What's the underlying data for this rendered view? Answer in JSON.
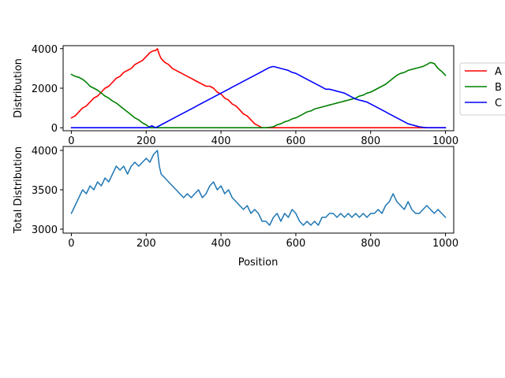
{
  "chart_data": [
    {
      "type": "line",
      "xlabel": "",
      "ylabel": "Distribution",
      "xlim": [
        -22,
        1022
      ],
      "ylim": [
        -150,
        4150
      ],
      "xticks": [
        0,
        200,
        400,
        600,
        800,
        1000
      ],
      "yticks": [
        0,
        2000,
        4000
      ],
      "legend_position": "outside-right",
      "series": [
        {
          "name": "A",
          "color": "#ff0000",
          "x": [
            0,
            10,
            20,
            30,
            40,
            50,
            60,
            70,
            80,
            90,
            100,
            110,
            120,
            130,
            140,
            150,
            160,
            170,
            180,
            190,
            200,
            210,
            220,
            225,
            230,
            235,
            240,
            250,
            260,
            270,
            280,
            290,
            300,
            310,
            320,
            330,
            340,
            350,
            360,
            370,
            380,
            390,
            400,
            410,
            420,
            430,
            440,
            450,
            460,
            470,
            480,
            490,
            500,
            510,
            520,
            530,
            1000
          ],
          "y": [
            500,
            600,
            800,
            1000,
            1100,
            1300,
            1500,
            1600,
            1800,
            2000,
            2100,
            2300,
            2500,
            2600,
            2800,
            2900,
            3000,
            3200,
            3300,
            3400,
            3600,
            3800,
            3900,
            3900,
            4000,
            3700,
            3500,
            3300,
            3200,
            3000,
            2900,
            2800,
            2700,
            2600,
            2500,
            2400,
            2300,
            2200,
            2100,
            2100,
            2000,
            1800,
            1700,
            1500,
            1400,
            1200,
            1100,
            900,
            700,
            600,
            400,
            200,
            100,
            0,
            0,
            0,
            0
          ]
        },
        {
          "name": "B",
          "color": "#008000",
          "x": [
            0,
            10,
            20,
            30,
            40,
            50,
            60,
            70,
            80,
            90,
            100,
            110,
            120,
            130,
            140,
            150,
            160,
            170,
            180,
            190,
            200,
            210,
            520,
            530,
            540,
            550,
            560,
            570,
            580,
            590,
            600,
            610,
            620,
            630,
            640,
            650,
            660,
            670,
            680,
            690,
            700,
            710,
            720,
            730,
            740,
            750,
            760,
            770,
            780,
            790,
            800,
            810,
            820,
            830,
            840,
            850,
            860,
            870,
            880,
            890,
            900,
            910,
            920,
            930,
            940,
            950,
            960,
            970,
            980,
            990,
            1000
          ],
          "y": [
            2700,
            2600,
            2550,
            2450,
            2300,
            2100,
            2000,
            1900,
            1750,
            1600,
            1500,
            1350,
            1250,
            1100,
            950,
            800,
            650,
            500,
            400,
            250,
            150,
            0,
            0,
            20,
            50,
            150,
            200,
            300,
            350,
            450,
            500,
            600,
            700,
            800,
            850,
            950,
            1000,
            1050,
            1100,
            1150,
            1200,
            1250,
            1300,
            1350,
            1400,
            1450,
            1500,
            1600,
            1650,
            1750,
            1800,
            1900,
            2000,
            2100,
            2200,
            2350,
            2500,
            2650,
            2750,
            2800,
            2900,
            2950,
            3000,
            3050,
            3100,
            3200,
            3300,
            3250,
            3000,
            2850,
            2650
          ]
        },
        {
          "name": "C",
          "color": "#0000ff",
          "x": [
            0,
            205,
            215,
            225,
            230,
            240,
            250,
            260,
            270,
            280,
            290,
            300,
            310,
            320,
            330,
            340,
            350,
            360,
            370,
            380,
            390,
            400,
            410,
            420,
            430,
            440,
            450,
            460,
            470,
            480,
            490,
            500,
            510,
            520,
            530,
            540,
            550,
            560,
            570,
            580,
            590,
            600,
            610,
            620,
            630,
            640,
            650,
            660,
            670,
            680,
            690,
            700,
            710,
            720,
            730,
            740,
            750,
            760,
            770,
            780,
            790,
            800,
            810,
            820,
            830,
            840,
            850,
            860,
            870,
            880,
            890,
            900,
            910,
            920,
            930,
            940,
            950,
            1000
          ],
          "y": [
            0,
            0,
            100,
            0,
            50,
            150,
            250,
            350,
            450,
            550,
            650,
            750,
            850,
            950,
            1050,
            1150,
            1250,
            1350,
            1450,
            1550,
            1650,
            1750,
            1850,
            1950,
            2050,
            2150,
            2250,
            2350,
            2450,
            2550,
            2650,
            2750,
            2850,
            2950,
            3050,
            3100,
            3050,
            3000,
            2950,
            2900,
            2800,
            2750,
            2650,
            2550,
            2450,
            2350,
            2250,
            2150,
            2050,
            1950,
            1950,
            1900,
            1850,
            1800,
            1750,
            1650,
            1550,
            1450,
            1400,
            1350,
            1300,
            1200,
            1100,
            1000,
            900,
            800,
            700,
            600,
            500,
            400,
            300,
            200,
            150,
            100,
            50,
            20,
            0,
            0
          ]
        }
      ]
    },
    {
      "type": "line",
      "xlabel": "Position",
      "ylabel": "Total Distribution",
      "xlim": [
        -22,
        1022
      ],
      "ylim": [
        2950,
        4050
      ],
      "xticks": [
        0,
        200,
        400,
        600,
        800,
        1000
      ],
      "yticks": [
        3000,
        3500,
        4000
      ],
      "series": [
        {
          "color": "#1f77b4",
          "x": [
            0,
            10,
            20,
            30,
            40,
            50,
            60,
            70,
            80,
            90,
            100,
            110,
            120,
            130,
            140,
            150,
            160,
            170,
            180,
            190,
            200,
            210,
            220,
            230,
            235,
            240,
            250,
            260,
            270,
            280,
            290,
            300,
            310,
            320,
            330,
            340,
            350,
            360,
            370,
            380,
            390,
            400,
            410,
            420,
            430,
            440,
            450,
            460,
            470,
            480,
            490,
            500,
            510,
            520,
            530,
            540,
            550,
            560,
            570,
            580,
            590,
            600,
            610,
            620,
            630,
            640,
            650,
            660,
            670,
            680,
            690,
            700,
            710,
            720,
            730,
            740,
            750,
            760,
            770,
            780,
            790,
            800,
            810,
            820,
            830,
            840,
            850,
            860,
            870,
            880,
            890,
            900,
            910,
            920,
            930,
            940,
            950,
            960,
            970,
            980,
            990,
            1000
          ],
          "y": [
            3200,
            3300,
            3400,
            3500,
            3450,
            3550,
            3500,
            3600,
            3550,
            3650,
            3600,
            3700,
            3800,
            3750,
            3800,
            3700,
            3800,
            3850,
            3800,
            3850,
            3900,
            3850,
            3950,
            4000,
            3800,
            3700,
            3650,
            3600,
            3550,
            3500,
            3450,
            3400,
            3450,
            3400,
            3450,
            3500,
            3400,
            3450,
            3550,
            3600,
            3500,
            3550,
            3450,
            3500,
            3400,
            3350,
            3300,
            3250,
            3300,
            3200,
            3250,
            3200,
            3100,
            3100,
            3050,
            3150,
            3200,
            3100,
            3200,
            3150,
            3250,
            3200,
            3100,
            3050,
            3100,
            3050,
            3100,
            3050,
            3150,
            3150,
            3200,
            3200,
            3150,
            3200,
            3150,
            3200,
            3150,
            3200,
            3150,
            3200,
            3150,
            3200,
            3200,
            3250,
            3200,
            3300,
            3350,
            3450,
            3350,
            3300,
            3250,
            3350,
            3250,
            3200,
            3200,
            3250,
            3300,
            3250,
            3200,
            3250,
            3200,
            3150
          ]
        }
      ]
    }
  ]
}
